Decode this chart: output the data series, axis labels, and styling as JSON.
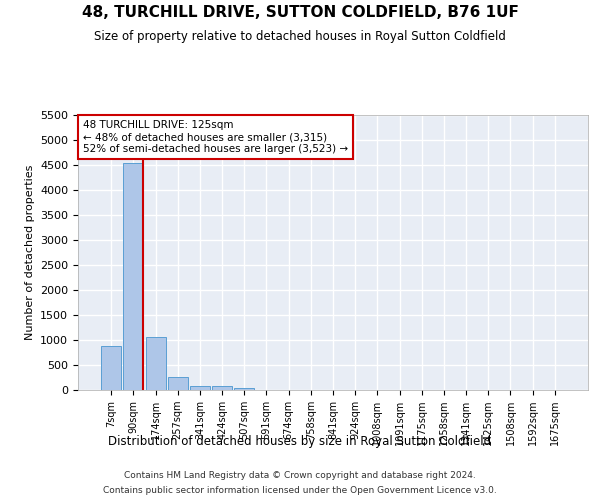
{
  "title_line1": "48, TURCHILL DRIVE, SUTTON COLDFIELD, B76 1UF",
  "title_line2": "Size of property relative to detached houses in Royal Sutton Coldfield",
  "xlabel": "Distribution of detached houses by size in Royal Sutton Coldfield",
  "ylabel": "Number of detached properties",
  "footer_line1": "Contains HM Land Registry data © Crown copyright and database right 2024.",
  "footer_line2": "Contains public sector information licensed under the Open Government Licence v3.0.",
  "annotation_line1": "48 TURCHILL DRIVE: 125sqm",
  "annotation_line2": "← 48% of detached houses are smaller (3,315)",
  "annotation_line3": "52% of semi-detached houses are larger (3,523) →",
  "bar_color": "#aec6e8",
  "bar_edge_color": "#5a9fd4",
  "vline_color": "#cc0000",
  "annotation_box_color": "#cc0000",
  "background_color": "#e8edf5",
  "grid_color": "#ffffff",
  "categories": [
    "7sqm",
    "90sqm",
    "174sqm",
    "257sqm",
    "341sqm",
    "424sqm",
    "507sqm",
    "591sqm",
    "674sqm",
    "758sqm",
    "841sqm",
    "924sqm",
    "1008sqm",
    "1091sqm",
    "1175sqm",
    "1258sqm",
    "1341sqm",
    "1425sqm",
    "1508sqm",
    "1592sqm",
    "1675sqm"
  ],
  "values": [
    880,
    4540,
    1060,
    270,
    80,
    80,
    50,
    0,
    0,
    0,
    0,
    0,
    0,
    0,
    0,
    0,
    0,
    0,
    0,
    0,
    0
  ],
  "ylim": [
    0,
    5500
  ],
  "yticks": [
    0,
    500,
    1000,
    1500,
    2000,
    2500,
    3000,
    3500,
    4000,
    4500,
    5000,
    5500
  ],
  "vline_x": 1.45,
  "figsize": [
    6.0,
    5.0
  ],
  "dpi": 100
}
